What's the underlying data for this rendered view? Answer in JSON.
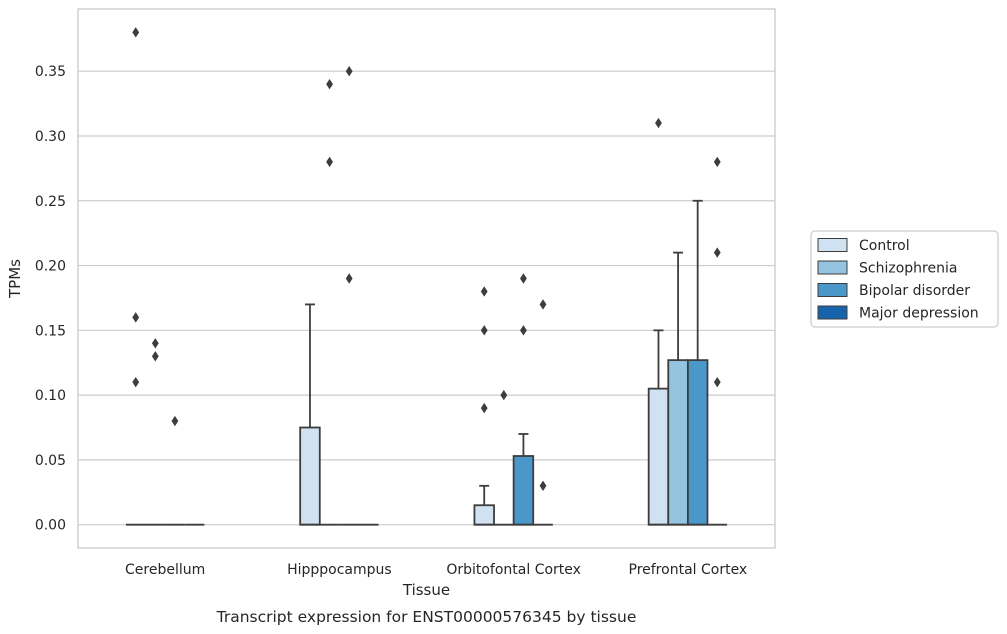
{
  "caption": "Transcript expression for ENST00000576345 by tissue",
  "chart_data": {
    "type": "box",
    "xlabel": "Tissue",
    "ylabel": "TPMs",
    "ylim": [
      -0.018,
      0.398
    ],
    "yticks": [
      "0.00",
      "0.05",
      "0.10",
      "0.15",
      "0.20",
      "0.25",
      "0.30",
      "0.35"
    ],
    "grid": true,
    "legend_position": "right",
    "categories": [
      "Cerebellum",
      "Hipppocampus",
      "Orbitofontal Cortex",
      "Prefrontal Cortex"
    ],
    "series": [
      {
        "name": "Control",
        "color": "#d0e1f2",
        "boxes": [
          {
            "q1": 0,
            "median": 0,
            "q3": 0,
            "whisker_low": 0,
            "whisker_high": 0,
            "outliers": [
              0.38,
              0.16,
              0.11
            ]
          },
          {
            "q1": 0,
            "median": 0,
            "q3": 0.075,
            "whisker_low": 0,
            "whisker_high": 0.17,
            "outliers": []
          },
          {
            "q1": 0,
            "median": 0,
            "q3": 0.015,
            "whisker_low": 0,
            "whisker_high": 0.03,
            "outliers": [
              0.18,
              0.15,
              0.09
            ]
          },
          {
            "q1": 0,
            "median": 0,
            "q3": 0.105,
            "whisker_low": 0,
            "whisker_high": 0.15,
            "outliers": [
              0.31
            ]
          }
        ]
      },
      {
        "name": "Schizophrenia",
        "color": "#94c4df",
        "boxes": [
          {
            "q1": 0,
            "median": 0,
            "q3": 0,
            "whisker_low": 0,
            "whisker_high": 0,
            "outliers": [
              0.14,
              0.13
            ]
          },
          {
            "q1": 0,
            "median": 0,
            "q3": 0,
            "whisker_low": 0,
            "whisker_high": 0,
            "outliers": [
              0.34,
              0.28
            ]
          },
          {
            "q1": 0,
            "median": 0,
            "q3": 0,
            "whisker_low": 0,
            "whisker_high": 0,
            "outliers": [
              0.1
            ]
          },
          {
            "q1": 0,
            "median": 0,
            "q3": 0.127,
            "whisker_low": 0,
            "whisker_high": 0.21,
            "outliers": []
          }
        ]
      },
      {
        "name": "Bipolar disorder",
        "color": "#4a98c9",
        "boxes": [
          {
            "q1": 0,
            "median": 0,
            "q3": 0,
            "whisker_low": 0,
            "whisker_high": 0,
            "outliers": [
              0.08
            ]
          },
          {
            "q1": 0,
            "median": 0,
            "q3": 0,
            "whisker_low": 0,
            "whisker_high": 0,
            "outliers": [
              0.35,
              0.19
            ]
          },
          {
            "q1": 0,
            "median": 0,
            "q3": 0.053,
            "whisker_low": 0,
            "whisker_high": 0.07,
            "outliers": [
              0.19,
              0.15
            ]
          },
          {
            "q1": 0,
            "median": 0,
            "q3": 0.127,
            "whisker_low": 0,
            "whisker_high": 0.25,
            "outliers": []
          }
        ]
      },
      {
        "name": "Major depression",
        "color": "#1764ab",
        "boxes": [
          {
            "q1": 0,
            "median": 0,
            "q3": 0,
            "whisker_low": 0,
            "whisker_high": 0,
            "outliers": []
          },
          {
            "q1": 0,
            "median": 0,
            "q3": 0,
            "whisker_low": 0,
            "whisker_high": 0,
            "outliers": []
          },
          {
            "q1": 0,
            "median": 0,
            "q3": 0,
            "whisker_low": 0,
            "whisker_high": 0,
            "outliers": [
              0.17,
              0.03
            ]
          },
          {
            "q1": 0,
            "median": 0,
            "q3": 0,
            "whisker_low": 0,
            "whisker_high": 0,
            "outliers": [
              0.28,
              0.21,
              0.11
            ]
          }
        ]
      }
    ]
  }
}
